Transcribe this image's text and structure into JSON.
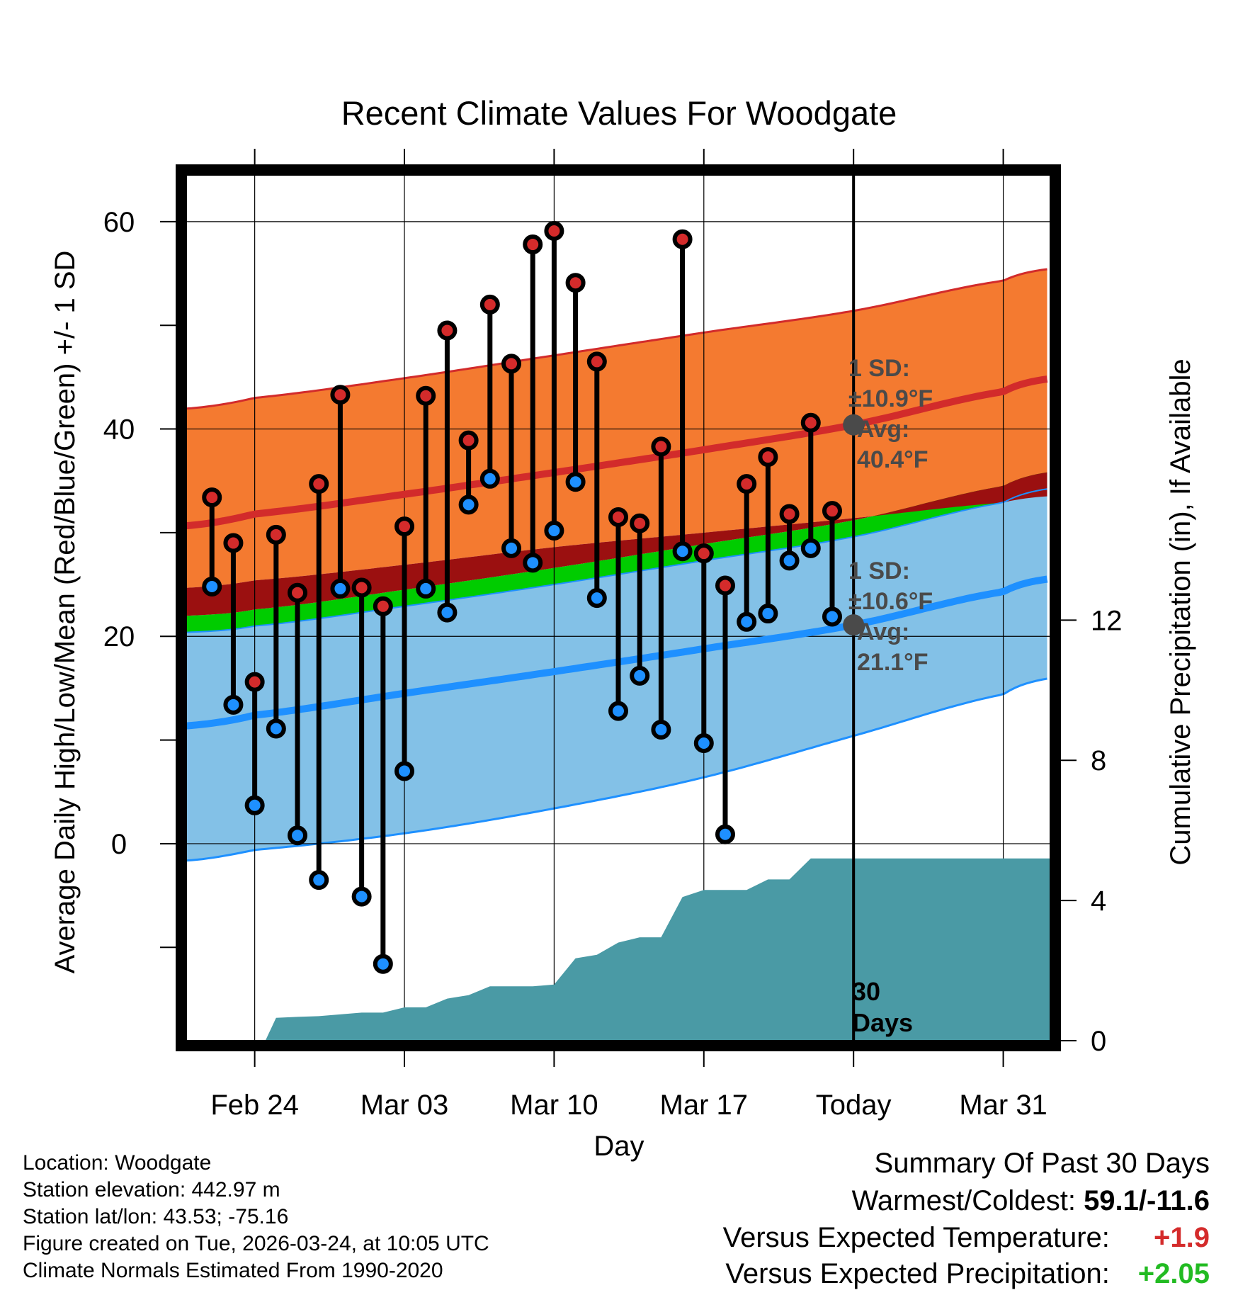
{
  "chart_data": {
    "type": "line",
    "title": "Recent Climate Values For Woodgate",
    "xlabel": "Day",
    "ylabel": "Average Daily High/Low/Mean (Red/Blue/Green) +/- 1 SD",
    "y2label": "Cumulative Precipitation (in), If Available",
    "xlim": [
      -3.2,
      37.2
    ],
    "ylim": [
      -19,
      64.5
    ],
    "y2lim": [
      0,
      24.7
    ],
    "x_ticks": [
      {
        "x": 0,
        "label": "Feb 24"
      },
      {
        "x": 7,
        "label": "Mar 03"
      },
      {
        "x": 14,
        "label": "Mar 10"
      },
      {
        "x": 21,
        "label": "Mar 17"
      },
      {
        "x": 28,
        "label": "Today"
      },
      {
        "x": 35,
        "label": "Mar 31"
      }
    ],
    "y_ticks": [
      0,
      20,
      40,
      60
    ],
    "y2_ticks": [
      0,
      4,
      8,
      12
    ],
    "today_x": 28,
    "days": [
      -2,
      -1,
      0,
      1,
      2,
      3,
      4,
      5,
      6,
      7,
      8,
      9,
      10,
      11,
      12,
      13,
      14,
      15,
      16,
      17,
      18,
      19,
      20,
      21,
      22,
      23,
      24,
      25,
      26,
      27
    ],
    "daily_high": [
      33.4,
      29.0,
      15.6,
      29.8,
      24.2,
      34.7,
      43.3,
      24.7,
      22.9,
      30.6,
      43.2,
      49.5,
      38.9,
      52.0,
      46.3,
      57.8,
      59.1,
      54.1,
      46.5,
      31.5,
      30.9,
      38.3,
      58.3,
      28.0,
      24.9,
      34.7,
      37.3,
      31.8,
      40.6,
      32.1
    ],
    "daily_low": [
      24.8,
      13.4,
      3.7,
      11.1,
      0.8,
      -3.5,
      24.6,
      -5.1,
      -11.6,
      7.0,
      24.6,
      22.3,
      32.7,
      35.2,
      28.5,
      27.1,
      30.2,
      34.9,
      23.7,
      12.8,
      16.2,
      11.0,
      28.2,
      9.7,
      0.9,
      21.4,
      22.2,
      27.3,
      28.5,
      21.9
    ],
    "normal_days": [
      -3,
      0,
      7,
      14,
      21,
      28,
      35,
      37
    ],
    "normal_high": [
      30.7,
      31.8,
      33.7,
      35.8,
      38.0,
      40.4,
      43.6,
      44.8
    ],
    "normal_high_upper": [
      42.0,
      43.0,
      44.9,
      47.1,
      49.3,
      51.4,
      54.3,
      55.4
    ],
    "normal_high_lower": [
      24.7,
      25.4,
      26.9,
      28.6,
      30.0,
      31.4,
      32.9,
      33.5
    ],
    "normal_low": [
      11.4,
      12.4,
      14.5,
      16.6,
      18.8,
      21.1,
      24.3,
      25.5
    ],
    "normal_low_upper": [
      20.4,
      21.0,
      22.9,
      25.0,
      27.3,
      29.6,
      32.9,
      34.2
    ],
    "normal_low_lower": [
      -1.6,
      -0.6,
      1.0,
      3.4,
      6.4,
      10.4,
      14.4,
      15.9
    ],
    "precip_days": [
      0.5,
      1,
      2,
      3,
      4,
      5,
      6,
      7,
      8,
      9,
      10,
      11,
      12,
      13,
      14,
      15,
      16,
      17,
      18,
      19,
      20,
      21,
      22,
      23,
      24,
      25,
      26,
      27,
      28,
      37.2
    ],
    "cumulative_precip": [
      0.0,
      0.65,
      0.68,
      0.7,
      0.75,
      0.8,
      0.8,
      0.95,
      0.95,
      1.2,
      1.3,
      1.55,
      1.55,
      1.55,
      1.6,
      2.35,
      2.45,
      2.8,
      2.95,
      2.95,
      4.1,
      4.3,
      4.3,
      4.3,
      4.6,
      4.6,
      5.2,
      5.2,
      5.2,
      5.2
    ],
    "annotations": {
      "high_sd_label": "1 SD:",
      "high_sd_value": "±10.9°F",
      "high_avg_label": "Avg:",
      "high_avg_value": "40.4°F",
      "low_sd_label": "1 SD:",
      "low_sd_value": "±10.6°F",
      "low_avg_label": "Avg:",
      "low_avg_value": "21.1°F",
      "days_count": "30",
      "days_word": "Days"
    }
  },
  "colors": {
    "high_band": "#f47a30",
    "high_band_edge": "#d22b2b",
    "normal_high_line": "#d22b2b",
    "low_band": "#83c1e7",
    "low_band_edge": "#1e90ff",
    "normal_low_line": "#1e90ff",
    "mean_band": "#00cc00",
    "overlap_band": "#9b1010",
    "precip_fill": "#4a9aa5",
    "high_dot": "#d42b2b",
    "low_dot": "#1e90ff",
    "summary_temp": "#d42b2b",
    "summary_precip": "#22bb22"
  },
  "info": {
    "location": "Location: Woodgate",
    "elevation": "Station elevation: 442.97 m",
    "latlon": "Station lat/lon: 43.53; -75.16",
    "created": "Figure created on Tue, 2026-03-24, at 10:05 UTC",
    "normals": "Climate Normals Estimated From 1990-2020"
  },
  "summary": {
    "title": "Summary Of Past 30 Days",
    "warm_cold_label": "Warmest/Coldest:",
    "warm_cold_value": "59.1/-11.6",
    "temp_label": "Versus Expected Temperature:",
    "temp_value": "+1.9",
    "precip_label": "Versus Expected Precipitation:",
    "precip_value": "+2.05"
  }
}
